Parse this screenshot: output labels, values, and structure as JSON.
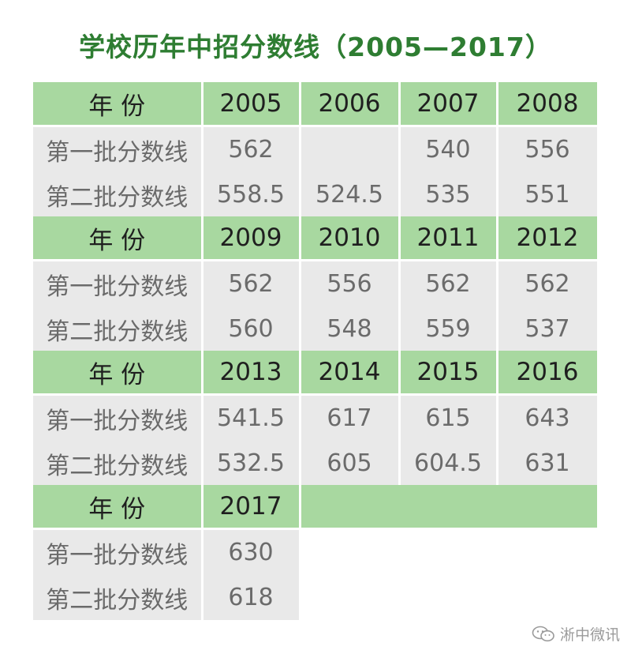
{
  "title": "学校历年中招分数线（2005—2017）",
  "year_label": "年  份",
  "row_labels": [
    "第一批分数线",
    "第二批分数线"
  ],
  "blocks": [
    {
      "years": [
        "2005",
        "2006",
        "2007",
        "2008"
      ],
      "first": [
        "562",
        "",
        "540",
        "556"
      ],
      "second": [
        "558.5",
        "524.5",
        "535",
        "551"
      ]
    },
    {
      "years": [
        "2009",
        "2010",
        "2011",
        "2012"
      ],
      "first": [
        "562",
        "556",
        "562",
        "562"
      ],
      "second": [
        "560",
        "548",
        "559",
        "537"
      ]
    },
    {
      "years": [
        "2013",
        "2014",
        "2015",
        "2016"
      ],
      "first": [
        "541.5",
        "617",
        "615",
        "643"
      ],
      "second": [
        "532.5",
        "605",
        "604.5",
        "631"
      ]
    },
    {
      "years": [
        "2017"
      ],
      "first": [
        "630"
      ],
      "second": [
        "618"
      ]
    }
  ],
  "watermark": {
    "text": "淅中微讯",
    "icon": "wechat-icon"
  }
}
